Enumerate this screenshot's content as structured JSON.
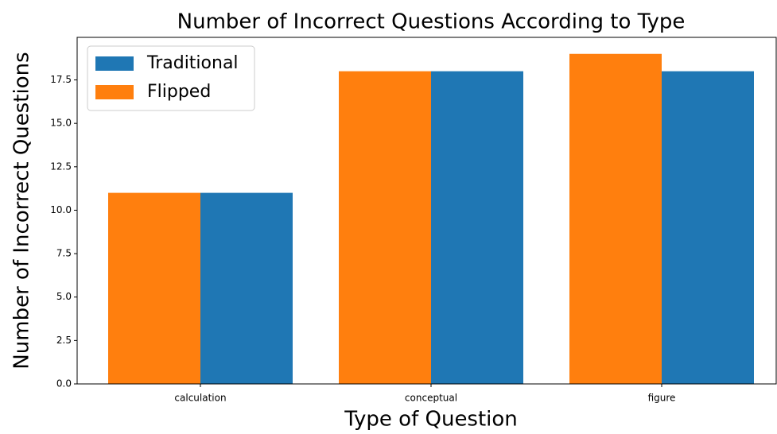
{
  "chart_data": {
    "type": "bar",
    "title": "Number of Incorrect Questions According to Type",
    "x_label": "Type of Question",
    "y_label": "Number of Incorrect Questions",
    "categories": [
      "calculation",
      "conceptual",
      "figure"
    ],
    "series": [
      {
        "name": "Traditional",
        "color": "#1f77b4",
        "values": [
          11,
          18,
          18
        ]
      },
      {
        "name": "Flipped",
        "color": "#ff7f0e",
        "values": [
          11,
          18,
          19
        ]
      }
    ],
    "ylim": [
      0,
      19.95
    ],
    "yticks": [
      {
        "value": 0,
        "label": "0.0"
      },
      2.5,
      {
        "value": 5,
        "label": "5.0"
      },
      7.5,
      {
        "value": 10,
        "label": "10.0"
      },
      12.5,
      {
        "value": 15,
        "label": "15.0"
      },
      17.5
    ],
    "legend": "upper left"
  }
}
